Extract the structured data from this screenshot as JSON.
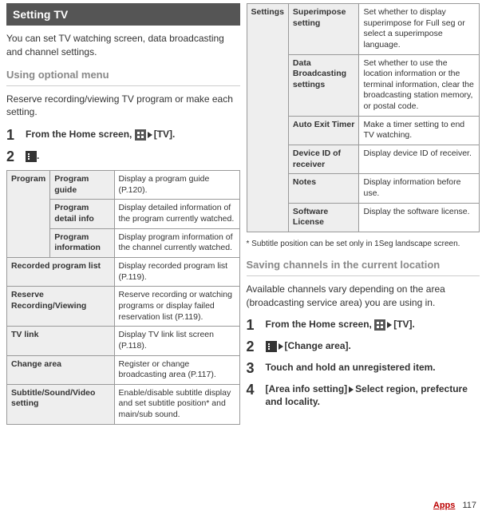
{
  "left": {
    "header": "Setting TV",
    "intro": "You can set TV watching screen, data broadcasting and channel settings.",
    "section1": "Using optional menu",
    "section1_desc": "Reserve recording/viewing TV program or make each setting.",
    "step1_label": "From the Home screen, ",
    "step1_tv": "[TV].",
    "step2_dot": ".",
    "table": {
      "program": "Program",
      "r1a": "Program guide",
      "r1b": "Display a program guide (P.120).",
      "r2a": "Program detail info",
      "r2b": "Display detailed information of the program currently watched.",
      "r3a": "Program information",
      "r3b": "Display program information of the channel currently watched.",
      "r4a": "Recorded program list",
      "r4b": "Display recorded program list (P.119).",
      "r5a": "Reserve Recording/Viewing",
      "r5b": "Reserve recording or watching programs or display failed reservation list (P.119).",
      "r6a": "TV link",
      "r6b": "Display TV link list screen (P.118).",
      "r7a": "Change area",
      "r7b": "Register or change broadcasting area (P.117).",
      "r8a": "Subtitle/Sound/Video setting",
      "r8b": "Enable/disable subtitle display and set subtitle position* and main/sub sound."
    }
  },
  "right": {
    "table": {
      "settings": "Settings",
      "r1a": "Superimpose setting",
      "r1b": "Set whether to display superimpose for Full seg or select a superimpose language.",
      "r2a": "Data Broadcasting settings",
      "r2b": "Set whether to use the location information or the terminal information, clear the broadcasting station memory, or postal code.",
      "r3a": "Auto Exit Timer",
      "r3b": "Make a timer setting to end TV watching.",
      "r4a": "Device ID of receiver",
      "r4b": "Display device ID of receiver.",
      "r5a": "Notes",
      "r5b": "Display information before use.",
      "r6a": "Software License",
      "r6b": "Display the software license."
    },
    "footnote": "*  Subtitle position can be set only in 1Seg landscape screen.",
    "section2": "Saving channels in the current location",
    "section2_desc": "Available channels vary depending on the area (broadcasting service area) you are using in.",
    "step1": "From the Home screen, ",
    "step1_tv": "[TV].",
    "step2_change": "[Change area].",
    "step3": "Touch and hold an unregistered item.",
    "step4a": "[Area info setting]",
    "step4b": "Select region, prefecture and locality."
  },
  "footer": {
    "apps": "Apps",
    "page": "117"
  }
}
